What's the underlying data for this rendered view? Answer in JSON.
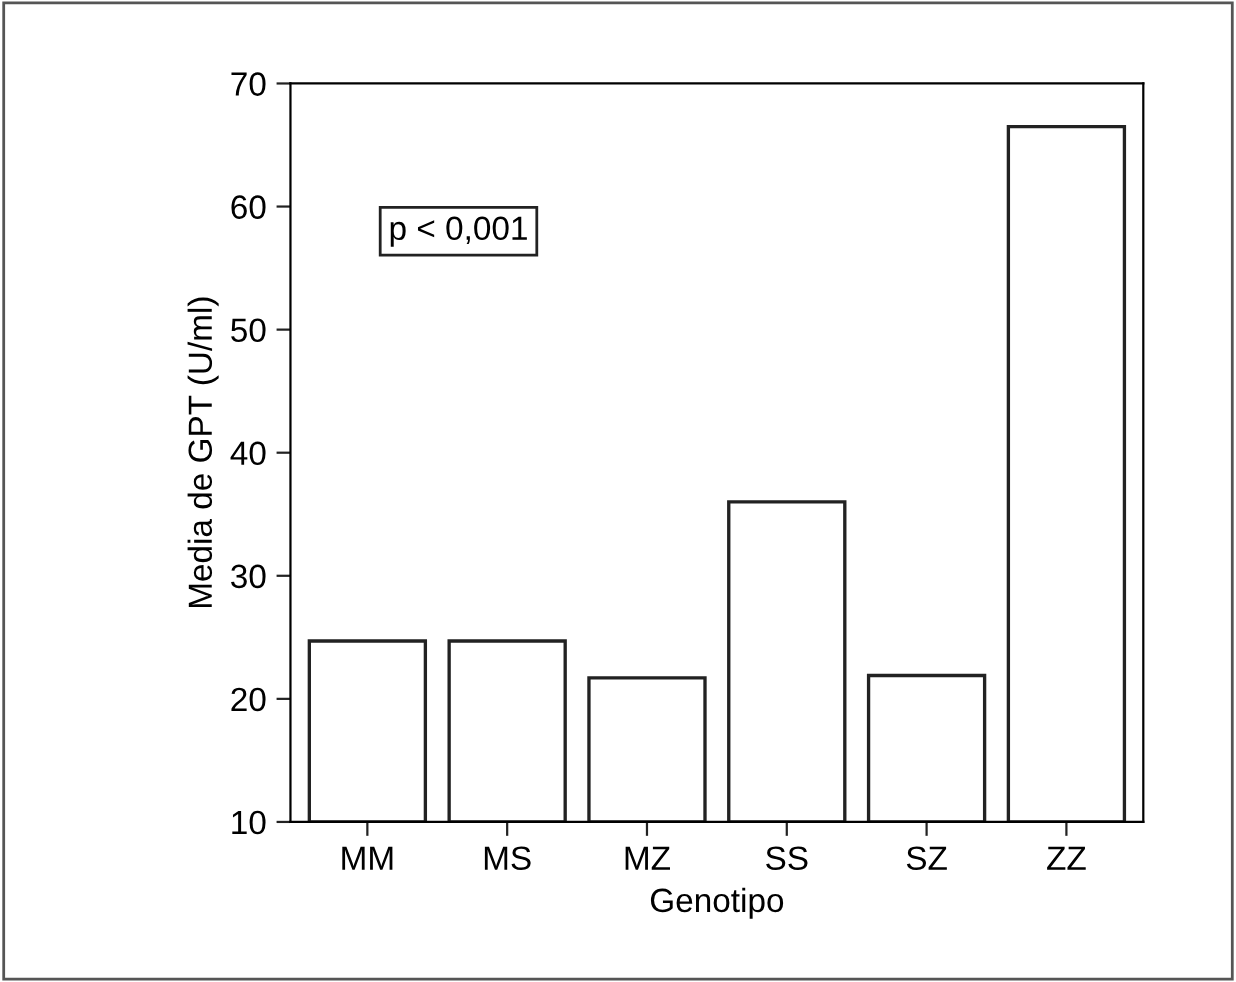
{
  "chart_data": {
    "type": "bar",
    "xlabel": "Genotipo",
    "ylabel": "Media de GPT (U/ml)",
    "categories": [
      "MM",
      "MS",
      "MZ",
      "SS",
      "SZ",
      "ZZ"
    ],
    "values": [
      24.7,
      24.7,
      21.7,
      36.0,
      21.9,
      66.5
    ],
    "color": "#ffffff",
    "ylim": [
      10,
      70
    ],
    "yticks": [
      10,
      20,
      30,
      40,
      50,
      60,
      70
    ],
    "grid": false,
    "legend": false,
    "annotations": [
      "p < 0,001"
    ]
  }
}
